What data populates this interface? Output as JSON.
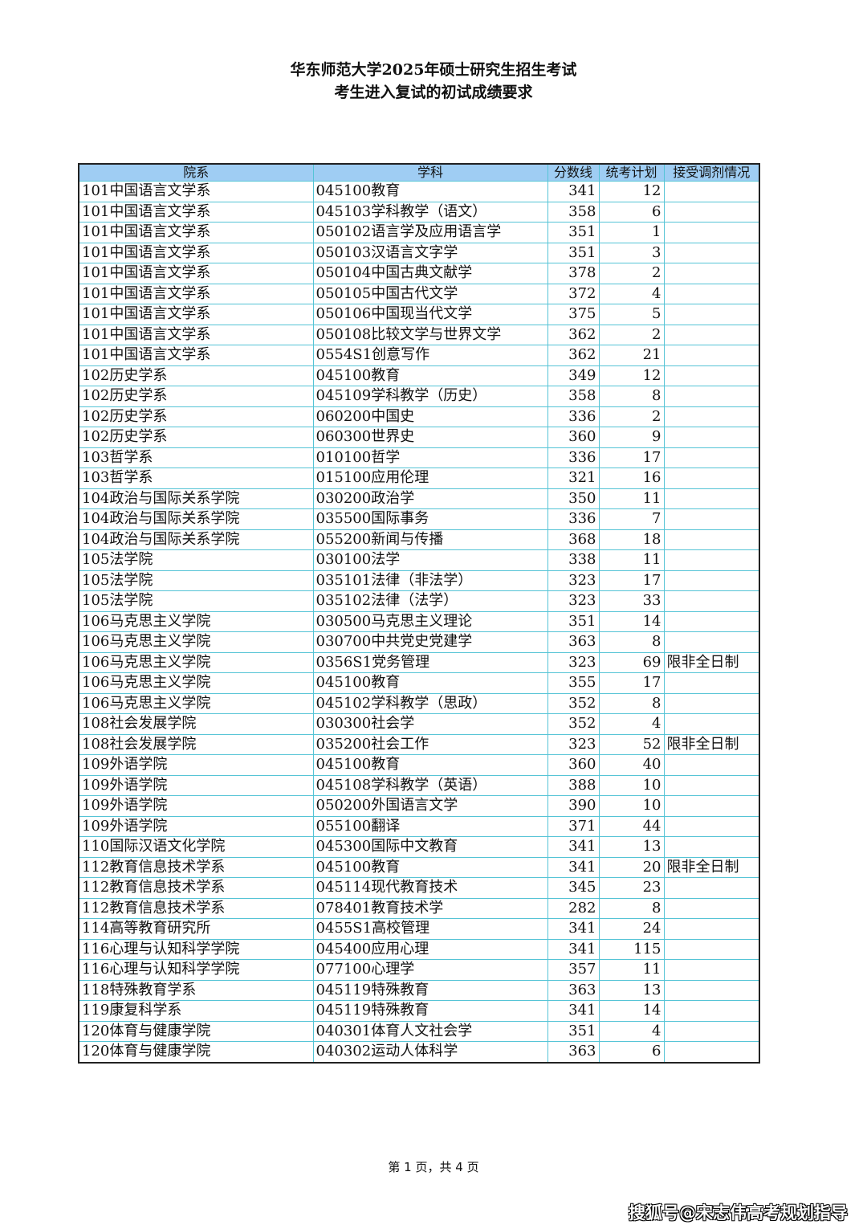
{
  "title_line1": "华东师范大学2025年硕士研究生招生考试",
  "title_line2": "考生进入复试的初试成绩要求",
  "table": {
    "headers": [
      "院系",
      "学科",
      "分数线",
      "统考计划",
      "接受调剂情况"
    ],
    "rows": [
      [
        "101中国语言文学系",
        "045100教育",
        "341",
        "12",
        ""
      ],
      [
        "101中国语言文学系",
        "045103学科教学（语文）",
        "358",
        "6",
        ""
      ],
      [
        "101中国语言文学系",
        "050102语言学及应用语言学",
        "351",
        "1",
        ""
      ],
      [
        "101中国语言文学系",
        "050103汉语言文字学",
        "351",
        "3",
        ""
      ],
      [
        "101中国语言文学系",
        "050104中国古典文献学",
        "378",
        "2",
        ""
      ],
      [
        "101中国语言文学系",
        "050105中国古代文学",
        "372",
        "4",
        ""
      ],
      [
        "101中国语言文学系",
        "050106中国现当代文学",
        "375",
        "5",
        ""
      ],
      [
        "101中国语言文学系",
        "050108比较文学与世界文学",
        "362",
        "2",
        ""
      ],
      [
        "101中国语言文学系",
        "0554S1创意写作",
        "362",
        "21",
        ""
      ],
      [
        "102历史学系",
        "045100教育",
        "349",
        "12",
        ""
      ],
      [
        "102历史学系",
        "045109学科教学（历史）",
        "358",
        "8",
        ""
      ],
      [
        "102历史学系",
        "060200中国史",
        "336",
        "2",
        ""
      ],
      [
        "102历史学系",
        "060300世界史",
        "360",
        "9",
        ""
      ],
      [
        "103哲学系",
        "010100哲学",
        "336",
        "17",
        ""
      ],
      [
        "103哲学系",
        "015100应用伦理",
        "321",
        "16",
        ""
      ],
      [
        "104政治与国际关系学院",
        "030200政治学",
        "350",
        "11",
        ""
      ],
      [
        "104政治与国际关系学院",
        "035500国际事务",
        "336",
        "7",
        ""
      ],
      [
        "104政治与国际关系学院",
        "055200新闻与传播",
        "368",
        "18",
        ""
      ],
      [
        "105法学院",
        "030100法学",
        "338",
        "11",
        ""
      ],
      [
        "105法学院",
        "035101法律（非法学）",
        "323",
        "17",
        ""
      ],
      [
        "105法学院",
        "035102法律（法学）",
        "323",
        "33",
        ""
      ],
      [
        "106马克思主义学院",
        "030500马克思主义理论",
        "351",
        "14",
        ""
      ],
      [
        "106马克思主义学院",
        "030700中共党史党建学",
        "363",
        "8",
        ""
      ],
      [
        "106马克思主义学院",
        "0356S1党务管理",
        "323",
        "69",
        "限非全日制"
      ],
      [
        "106马克思主义学院",
        "045100教育",
        "355",
        "17",
        ""
      ],
      [
        "106马克思主义学院",
        "045102学科教学（思政）",
        "352",
        "8",
        ""
      ],
      [
        "108社会发展学院",
        "030300社会学",
        "352",
        "4",
        ""
      ],
      [
        "108社会发展学院",
        "035200社会工作",
        "323",
        "52",
        "限非全日制"
      ],
      [
        "109外语学院",
        "045100教育",
        "360",
        "40",
        ""
      ],
      [
        "109外语学院",
        "045108学科教学（英语）",
        "388",
        "10",
        ""
      ],
      [
        "109外语学院",
        "050200外国语言文学",
        "390",
        "10",
        ""
      ],
      [
        "109外语学院",
        "055100翻译",
        "371",
        "44",
        ""
      ],
      [
        "110国际汉语文化学院",
        "045300国际中文教育",
        "341",
        "13",
        ""
      ],
      [
        "112教育信息技术学系",
        "045100教育",
        "341",
        "20",
        "限非全日制"
      ],
      [
        "112教育信息技术学系",
        "045114现代教育技术",
        "345",
        "23",
        ""
      ],
      [
        "112教育信息技术学系",
        "078401教育技术学",
        "282",
        "8",
        ""
      ],
      [
        "114高等教育研究所",
        "0455S1高校管理",
        "341",
        "24",
        ""
      ],
      [
        "116心理与认知科学学院",
        "045400应用心理",
        "341",
        "115",
        ""
      ],
      [
        "116心理与认知科学学院",
        "077100心理学",
        "357",
        "11",
        ""
      ],
      [
        "118特殊教育学系",
        "045119特殊教育",
        "363",
        "13",
        ""
      ],
      [
        "119康复科学系",
        "045119特殊教育",
        "341",
        "14",
        ""
      ],
      [
        "120体育与健康学院",
        "040301体育人文社会学",
        "351",
        "4",
        ""
      ],
      [
        "120体育与健康学院",
        "040302运动人体科学",
        "363",
        "6",
        ""
      ]
    ]
  },
  "footer": "第 1 页，共 4 页",
  "watermark": "搜狐号@宋志伟高考规划指导"
}
